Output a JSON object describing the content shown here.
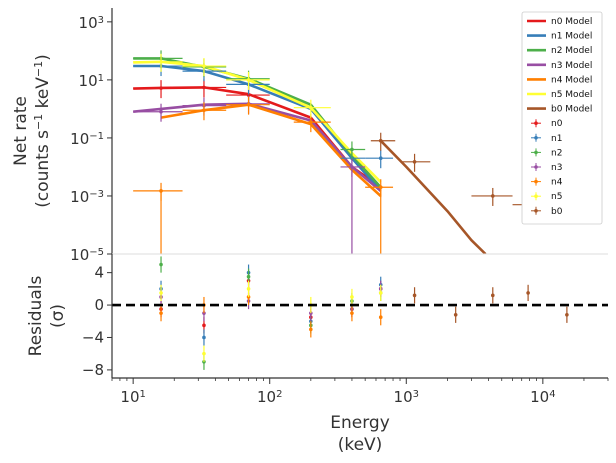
{
  "chart_data": {
    "type": "scatter",
    "x_scale": "log",
    "xlim": [
      7,
      30000
    ],
    "x_ticks": [
      10,
      100,
      1000,
      10000
    ],
    "x_tick_labels": [
      {
        "base": "10",
        "exp": "1"
      },
      {
        "base": "10",
        "exp": "2"
      },
      {
        "base": "10",
        "exp": "3"
      },
      {
        "base": "10",
        "exp": "4"
      }
    ],
    "xlabel": [
      "Energy",
      "(keV)"
    ],
    "top_panel": {
      "y_scale": "log",
      "ylim": [
        1e-05,
        3000
      ],
      "y_ticks": [
        1e-05,
        0.001,
        0.1,
        10,
        1000
      ],
      "y_tick_labels": [
        {
          "base": "10",
          "exp": "−5"
        },
        {
          "base": "10",
          "exp": "−3"
        },
        {
          "base": "10",
          "exp": "−1"
        },
        {
          "base": "10",
          "exp": "1"
        },
        {
          "base": "10",
          "exp": "3"
        }
      ],
      "ylabel_line1": "Net rate",
      "ylabel_line2": {
        "a": "(counts s",
        "a_exp": "−1",
        "b": " keV",
        "b_exp": "−1",
        "c": ")"
      }
    },
    "bottom_panel": {
      "ylim": [
        -9,
        6.3
      ],
      "y_ticks": [
        4,
        0,
        -4,
        -8
      ],
      "y_tick_labels": [
        "4",
        "0",
        "−4",
        "−8"
      ],
      "ylabel": [
        "Residuals",
        "(σ)"
      ],
      "zero_line": 0
    },
    "legend": {
      "placement": "top-right",
      "entries": [
        "n0 Model",
        "n1 Model",
        "n2 Model",
        "n3 Model",
        "n4 Model",
        "n5 Model",
        "b0 Model",
        "n0",
        "n1",
        "n2",
        "n3",
        "n4",
        "n5",
        "b0"
      ]
    },
    "series": [
      {
        "name": "n0",
        "color": "#e41a1c",
        "model": [
          [
            10,
            5
          ],
          [
            16,
            5.3
          ],
          [
            33,
            5.5
          ],
          [
            70,
            3.2
          ],
          [
            200,
            0.5
          ],
          [
            400,
            0.01
          ],
          [
            650,
            0.002
          ]
        ],
        "points": [
          {
            "x": 16,
            "xlo": 10,
            "xhi": 23,
            "y": 5.2
          },
          {
            "x": 33,
            "xlo": 23,
            "xhi": 48,
            "y": 5.5
          },
          {
            "x": 70,
            "xlo": 48,
            "xhi": 100,
            "y": 3.0
          }
        ],
        "residuals": [
          {
            "x": 16,
            "y": -0.5,
            "e": 1
          },
          {
            "x": 33,
            "y": -2.5,
            "e": 1
          },
          {
            "x": 70,
            "y": 3,
            "e": 1
          },
          {
            "x": 200,
            "y": -1.5,
            "e": 1
          },
          {
            "x": 400,
            "y": -0.5,
            "e": 1
          },
          {
            "x": 650,
            "y": 2,
            "e": 1
          }
        ]
      },
      {
        "name": "n1",
        "color": "#377eb8",
        "model": [
          [
            10,
            30
          ],
          [
            16,
            30
          ],
          [
            33,
            20
          ],
          [
            70,
            7
          ],
          [
            200,
            1.0
          ],
          [
            400,
            0.02
          ],
          [
            650,
            0.0015
          ]
        ],
        "points": [
          {
            "x": 16,
            "xlo": 10,
            "xhi": 23,
            "y": 30
          },
          {
            "x": 33,
            "xlo": 23,
            "xhi": 48,
            "y": 20
          },
          {
            "x": 70,
            "xlo": 48,
            "xhi": 100,
            "y": 7
          },
          {
            "x": 400,
            "xlo": 330,
            "xhi": 500,
            "y": 0.02
          },
          {
            "x": 650,
            "xlo": 500,
            "xhi": 800,
            "y": 0.02
          }
        ],
        "residuals": [
          {
            "x": 16,
            "y": 2,
            "e": 1
          },
          {
            "x": 33,
            "y": -4,
            "e": 1
          },
          {
            "x": 70,
            "y": 4,
            "e": 1
          },
          {
            "x": 200,
            "y": -2,
            "e": 1
          },
          {
            "x": 400,
            "y": 0,
            "e": 1
          },
          {
            "x": 650,
            "y": 2.5,
            "e": 1
          }
        ]
      },
      {
        "name": "n2",
        "color": "#4daf4a",
        "model": [
          [
            10,
            55
          ],
          [
            16,
            55
          ],
          [
            33,
            28
          ],
          [
            70,
            11
          ],
          [
            200,
            1.4
          ],
          [
            400,
            0.025
          ],
          [
            650,
            0.002
          ]
        ],
        "points": [
          {
            "x": 16,
            "xlo": 10,
            "xhi": 23,
            "y": 55
          },
          {
            "x": 33,
            "xlo": 23,
            "xhi": 48,
            "y": 28
          },
          {
            "x": 70,
            "xlo": 48,
            "xhi": 100,
            "y": 11
          },
          {
            "x": 400,
            "xlo": 330,
            "xhi": 500,
            "y": 0.04
          }
        ],
        "residuals": [
          {
            "x": 16,
            "y": 5,
            "e": 1
          },
          {
            "x": 33,
            "y": -7,
            "e": 1
          },
          {
            "x": 70,
            "y": 3.5,
            "e": 1
          },
          {
            "x": 200,
            "y": -2.5,
            "e": 1
          },
          {
            "x": 400,
            "y": 0.5,
            "e": 1
          },
          {
            "x": 650,
            "y": 1.5,
            "e": 1
          }
        ]
      },
      {
        "name": "n3",
        "color": "#984ea3",
        "model": [
          [
            10,
            0.8
          ],
          [
            16,
            1.0
          ],
          [
            33,
            1.4
          ],
          [
            70,
            1.5
          ],
          [
            200,
            0.4
          ],
          [
            400,
            0.01
          ],
          [
            650,
            0.0015
          ]
        ],
        "points": [
          {
            "x": 16,
            "xlo": 10,
            "xhi": 23,
            "y": 0.8
          },
          {
            "x": 33,
            "xlo": 23,
            "xhi": 48,
            "y": 1.3
          },
          {
            "x": 70,
            "xlo": 48,
            "xhi": 100,
            "y": 1.5
          },
          {
            "x": 400,
            "xlo": 330,
            "xhi": 500,
            "y": 0.01
          }
        ],
        "residuals": [
          {
            "x": 16,
            "y": 1,
            "e": 1
          },
          {
            "x": 33,
            "y": -1,
            "e": 1
          },
          {
            "x": 70,
            "y": 0.5,
            "e": 1
          },
          {
            "x": 200,
            "y": -1,
            "e": 1
          },
          {
            "x": 400,
            "y": -0.5,
            "e": 1
          },
          {
            "x": 650,
            "y": 2,
            "e": 1
          }
        ]
      },
      {
        "name": "n4",
        "color": "#ff7f00",
        "model": [
          [
            16,
            0.5
          ],
          [
            33,
            0.9
          ],
          [
            70,
            1.4
          ],
          [
            200,
            0.3
          ],
          [
            400,
            0.008
          ],
          [
            650,
            0.001
          ]
        ],
        "points": [
          {
            "x": 16,
            "xlo": 10,
            "xhi": 23,
            "y": 0.0015
          },
          {
            "x": 33,
            "xlo": 23,
            "xhi": 48,
            "y": 0.9
          },
          {
            "x": 70,
            "xlo": 48,
            "xhi": 100,
            "y": 1.4
          },
          {
            "x": 200,
            "xlo": 150,
            "xhi": 280,
            "y": 0.35
          },
          {
            "x": 650,
            "xlo": 500,
            "xhi": 800,
            "y": 0.002
          }
        ],
        "residuals": [
          {
            "x": 16,
            "y": -1,
            "e": 1
          },
          {
            "x": 33,
            "y": 0,
            "e": 1
          },
          {
            "x": 70,
            "y": 1,
            "e": 1
          },
          {
            "x": 200,
            "y": -3,
            "e": 1
          },
          {
            "x": 400,
            "y": -1,
            "e": 1
          },
          {
            "x": 650,
            "y": -1.5,
            "e": 1
          }
        ]
      },
      {
        "name": "n5",
        "color": "#ffff33",
        "model": [
          [
            10,
            40
          ],
          [
            16,
            42
          ],
          [
            33,
            30
          ],
          [
            70,
            10
          ],
          [
            200,
            1.1
          ],
          [
            400,
            0.03
          ],
          [
            650,
            0.003
          ]
        ],
        "points": [
          {
            "x": 16,
            "xlo": 10,
            "xhi": 23,
            "y": 42
          },
          {
            "x": 33,
            "xlo": 23,
            "xhi": 48,
            "y": 30
          },
          {
            "x": 70,
            "xlo": 48,
            "xhi": 100,
            "y": 10
          },
          {
            "x": 200,
            "xlo": 150,
            "xhi": 280,
            "y": 1.1
          }
        ],
        "residuals": [
          {
            "x": 16,
            "y": 1.5,
            "e": 1
          },
          {
            "x": 33,
            "y": -6,
            "e": 1
          },
          {
            "x": 70,
            "y": 2,
            "e": 1
          },
          {
            "x": 200,
            "y": 0,
            "e": 1
          },
          {
            "x": 400,
            "y": 1,
            "e": 1
          },
          {
            "x": 650,
            "y": 1.5,
            "e": 1
          }
        ]
      },
      {
        "name": "b0",
        "color": "#a65628",
        "model": [
          [
            650,
            0.08
          ],
          [
            1000,
            0.01
          ],
          [
            2000,
            0.0003
          ],
          [
            3000,
            3e-05
          ],
          [
            3800,
            1e-05
          ]
        ],
        "points": [
          {
            "x": 650,
            "xlo": 550,
            "xhi": 830,
            "y": 0.08
          },
          {
            "x": 1150,
            "xlo": 900,
            "xhi": 1500,
            "y": 0.015
          },
          {
            "x": 4300,
            "xlo": 3000,
            "xhi": 6000,
            "y": 0.001
          },
          {
            "x": 7800,
            "xlo": 6000,
            "xhi": 10000,
            "y": 0.0005
          }
        ],
        "residuals": [
          {
            "x": 1150,
            "y": 1.2,
            "e": 1
          },
          {
            "x": 2300,
            "y": -1.2,
            "e": 1
          },
          {
            "x": 4300,
            "y": 1.2,
            "e": 1
          },
          {
            "x": 7800,
            "y": 1.5,
            "e": 1
          },
          {
            "x": 15000,
            "y": -1.2,
            "e": 1
          }
        ]
      }
    ]
  }
}
